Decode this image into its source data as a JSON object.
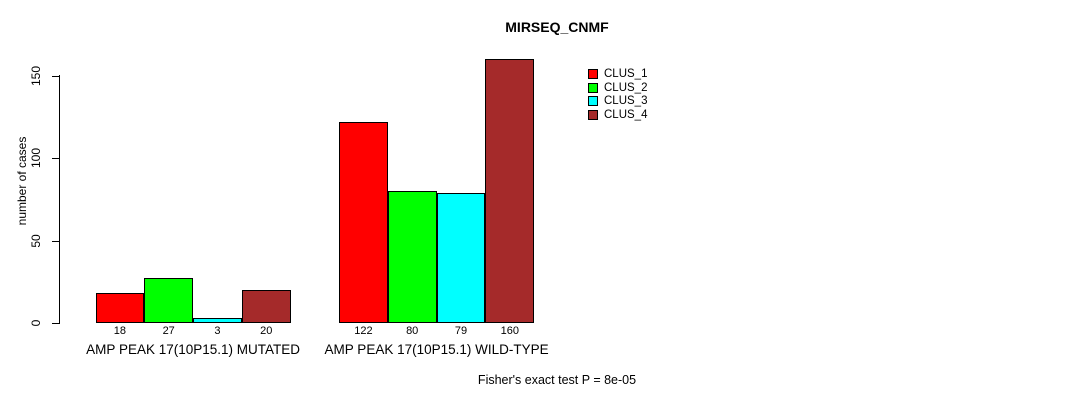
{
  "chart_data": {
    "type": "bar",
    "title": "MIRSEQ_CNMF",
    "ylabel": "number of cases",
    "xlabel": "",
    "ylim": [
      0,
      160
    ],
    "yticks": [
      0,
      50,
      100,
      150
    ],
    "grid": false,
    "legend_position": "top-right",
    "categories": [
      "AMP PEAK 17(10P15.1) MUTATED",
      "AMP PEAK 17(10P15.1) WILD-TYPE"
    ],
    "series": [
      {
        "name": "CLUS_1",
        "color": "#FF0000",
        "values": [
          18,
          122
        ]
      },
      {
        "name": "CLUS_2",
        "color": "#00FF00",
        "values": [
          27,
          80
        ]
      },
      {
        "name": "CLUS_3",
        "color": "#00FFFF",
        "values": [
          3,
          79
        ]
      },
      {
        "name": "CLUS_4",
        "color": "#A52A2A",
        "values": [
          20,
          160
        ]
      }
    ],
    "bar_value_labels_shown": true,
    "footnote": "Fisher's exact test P = 8e-05"
  }
}
